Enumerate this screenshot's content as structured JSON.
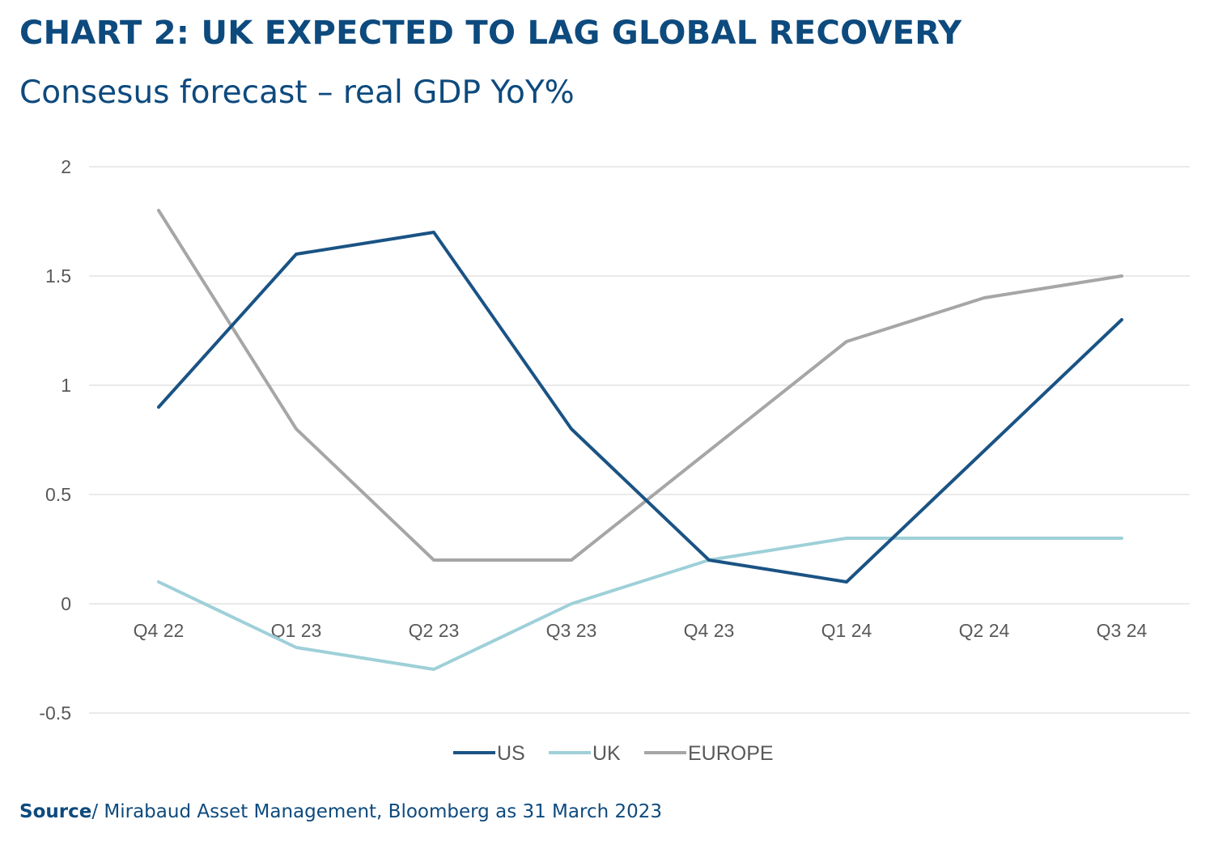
{
  "chart_data": {
    "type": "line",
    "title": "CHART 2: UK EXPECTED TO LAG GLOBAL RECOVERY",
    "subtitle": "Consesus forecast – real GDP YoY%",
    "xlabel": "",
    "ylabel": "",
    "categories": [
      "Q4 22",
      "Q1 23",
      "Q2 23",
      "Q3 23",
      "Q4 23",
      "Q1 24",
      "Q2 24",
      "Q3 24"
    ],
    "ylim": [
      -0.5,
      2
    ],
    "yticks": [
      -0.5,
      0,
      0.5,
      1,
      1.5,
      2
    ],
    "ytick_labels": [
      "-0.5",
      "0",
      "0.5",
      "1",
      "1.5",
      "2"
    ],
    "grid": true,
    "legend_position": "bottom",
    "series": [
      {
        "name": "US",
        "color": "#1a5384",
        "values": [
          0.9,
          1.6,
          1.7,
          0.8,
          0.2,
          0.1,
          0.7,
          1.3
        ]
      },
      {
        "name": "UK",
        "color": "#9ed0d8",
        "values": [
          0.1,
          -0.2,
          -0.3,
          0.0,
          0.2,
          0.3,
          0.3,
          0.3
        ]
      },
      {
        "name": "EUROPE",
        "color": "#a6a6a6",
        "values": [
          1.8,
          0.8,
          0.2,
          0.2,
          0.7,
          1.2,
          1.4,
          1.5
        ]
      }
    ]
  },
  "source": {
    "label": "Source",
    "text": "/ Mirabaud Asset Management, Bloomberg as 31 March 2023"
  }
}
